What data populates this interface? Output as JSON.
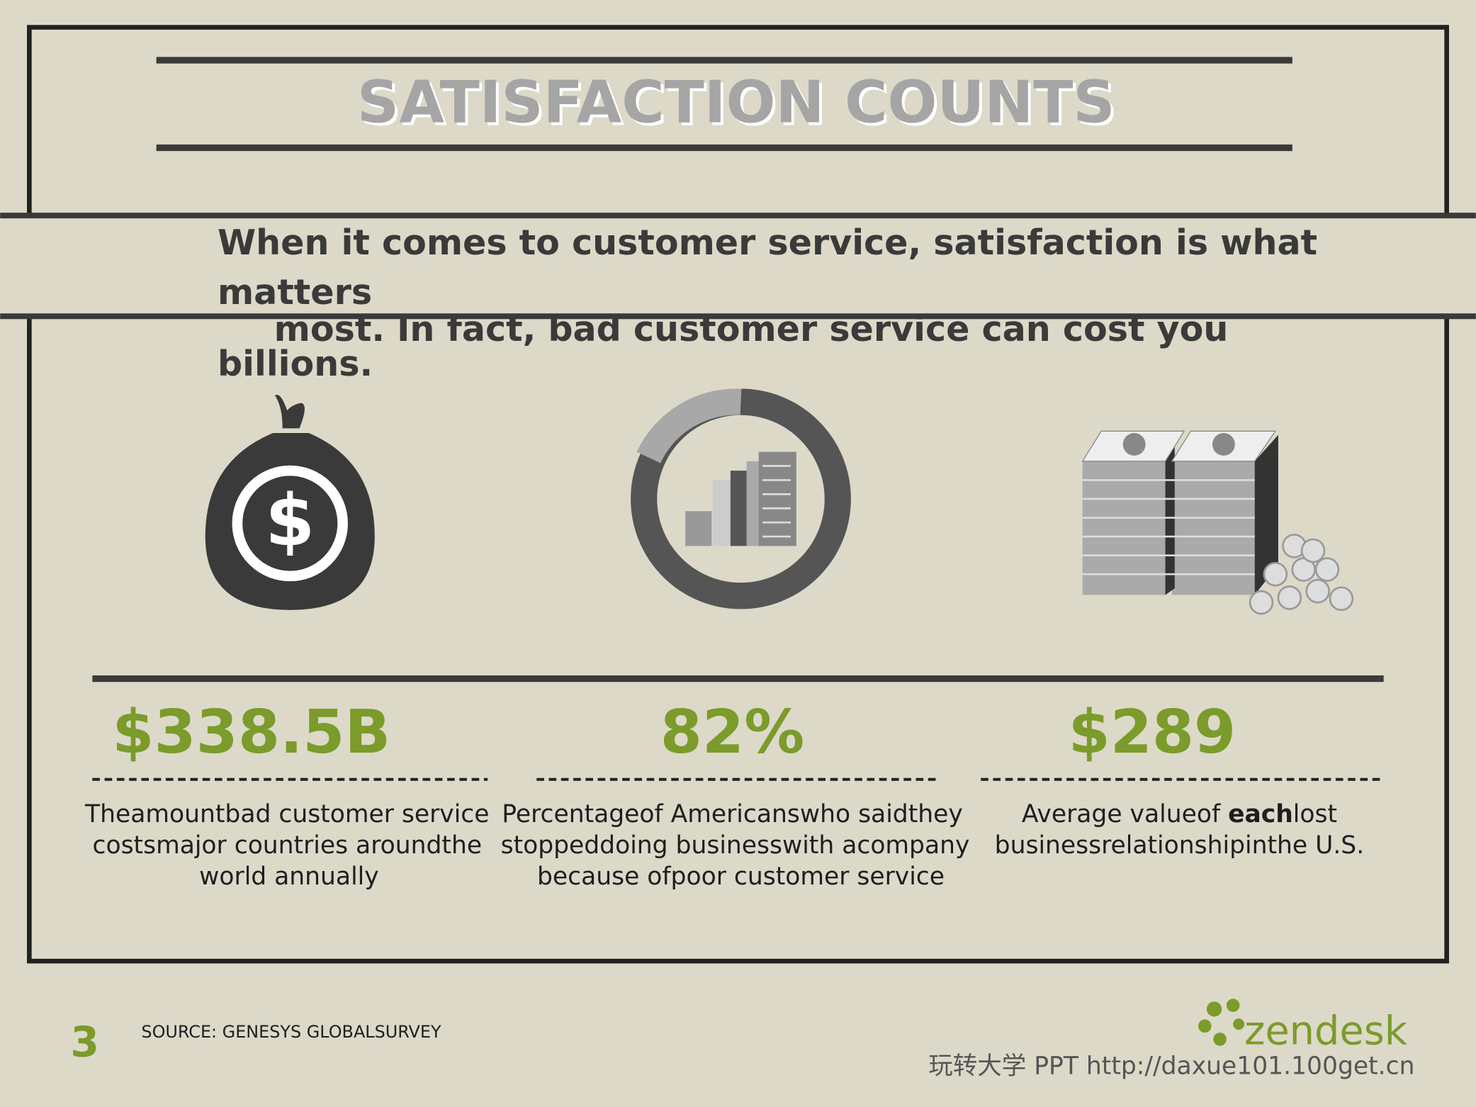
{
  "header": {
    "title": "SATISFACTION COUNTS"
  },
  "intro": {
    "lines": [
      "When it comes to customer service, satisfaction is what",
      "matters",
      "most. In fact, bad customer service can cost you",
      "billions."
    ]
  },
  "stats": [
    {
      "value": "$338.5B",
      "description": [
        [
          "Theamountbad customer service"
        ],
        [
          "costsmajor countries aroundthe"
        ],
        [
          "world annually"
        ]
      ]
    },
    {
      "value": "82%",
      "description": [
        [
          "Percentageof Americanswho saidthey"
        ],
        [
          "stoppeddoing businesswith acompany"
        ],
        [
          "because ofpoor customer service"
        ]
      ]
    },
    {
      "value": "$289",
      "description": [
        [
          "Average valueof ",
          "each",
          "lost"
        ],
        [
          "businessrelationshipinthe U.S."
        ]
      ]
    }
  ],
  "footer": {
    "page_number": "3",
    "source": "SOURCE: GENESYS GLOBALSURVEY",
    "logo": "zendesk",
    "watermark": "玩转大学 PPT http://daxue101.100get.cn"
  }
}
